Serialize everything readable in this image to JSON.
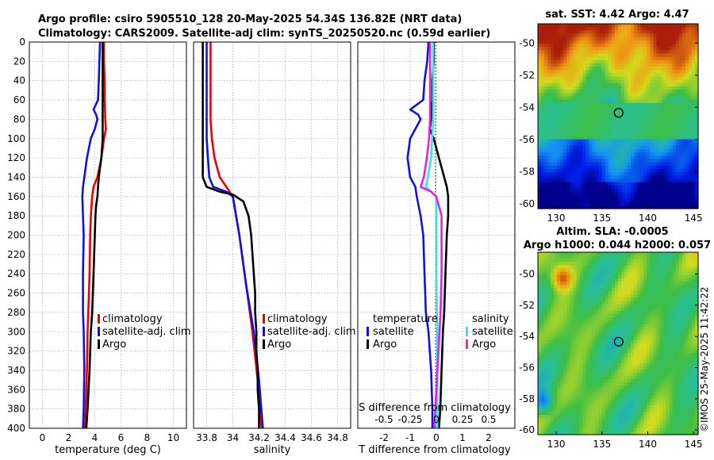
{
  "header": {
    "title_line1": "Argo profile: csiro 5905510_128 20-May-2025 54.34S 136.82E (NRT data)",
    "title_line2": "Climatology: CARS2009. Satellite-adj clim: synTS_20250520.nc (0.59d earlier)"
  },
  "colors": {
    "climatology": "#ee0000",
    "satellite": "#1111dd",
    "argo": "#000000",
    "salinity_sat": "#33e6e6",
    "salinity_argo": "#e61ee6",
    "grid": "#b3b3b3"
  },
  "chart_data": [
    {
      "id": "temperature",
      "type": "line",
      "xlabel": "temperature (deg C)",
      "ylabel": "",
      "xlim": [
        -1,
        11
      ],
      "ylim": [
        400,
        0
      ],
      "xticks": [
        0,
        2,
        4,
        6,
        8,
        10
      ],
      "yticks": [
        0,
        20,
        40,
        60,
        80,
        100,
        120,
        140,
        160,
        180,
        200,
        220,
        240,
        260,
        280,
        300,
        320,
        340,
        360,
        380,
        400
      ],
      "legend": [
        "climatology",
        "satellite-adj. clim",
        "Argo"
      ],
      "series": [
        {
          "name": "climatology",
          "color": "#ee0000",
          "points": [
            [
              4.7,
              0
            ],
            [
              4.7,
              20
            ],
            [
              4.75,
              40
            ],
            [
              4.75,
              60
            ],
            [
              4.8,
              80
            ],
            [
              4.85,
              90
            ],
            [
              4.7,
              100
            ],
            [
              4.5,
              120
            ],
            [
              4.2,
              140
            ],
            [
              3.9,
              150
            ],
            [
              3.8,
              160
            ],
            [
              3.7,
              180
            ],
            [
              3.65,
              200
            ],
            [
              3.6,
              240
            ],
            [
              3.5,
              280
            ],
            [
              3.45,
              300
            ],
            [
              3.4,
              340
            ],
            [
              3.3,
              380
            ],
            [
              3.25,
              400
            ]
          ]
        },
        {
          "name": "satellite-adj. clim",
          "color": "#1111dd",
          "points": [
            [
              4.4,
              0
            ],
            [
              4.35,
              20
            ],
            [
              4.3,
              40
            ],
            [
              4.25,
              60
            ],
            [
              3.9,
              70
            ],
            [
              4.1,
              75
            ],
            [
              4.2,
              80
            ],
            [
              4.0,
              90
            ],
            [
              3.7,
              100
            ],
            [
              3.4,
              120
            ],
            [
              3.2,
              140
            ],
            [
              3.1,
              150
            ],
            [
              3.05,
              160
            ],
            [
              3.1,
              180
            ],
            [
              3.15,
              200
            ],
            [
              3.1,
              240
            ],
            [
              3.1,
              280
            ],
            [
              3.15,
              300
            ],
            [
              3.2,
              340
            ],
            [
              3.15,
              380
            ],
            [
              3.1,
              400
            ]
          ]
        },
        {
          "name": "Argo",
          "color": "#000000",
          "points": [
            [
              4.6,
              0
            ],
            [
              4.6,
              20
            ],
            [
              4.6,
              40
            ],
            [
              4.6,
              60
            ],
            [
              4.6,
              80
            ],
            [
              4.6,
              100
            ],
            [
              4.55,
              110
            ],
            [
              4.5,
              120
            ],
            [
              4.4,
              130
            ],
            [
              4.3,
              140
            ],
            [
              4.25,
              150
            ],
            [
              4.2,
              160
            ],
            [
              4.1,
              170
            ],
            [
              4.05,
              180
            ],
            [
              4.0,
              200
            ],
            [
              3.9,
              240
            ],
            [
              3.8,
              280
            ],
            [
              3.7,
              300
            ],
            [
              3.6,
              340
            ],
            [
              3.45,
              380
            ],
            [
              3.35,
              400
            ]
          ]
        }
      ]
    },
    {
      "id": "salinity",
      "type": "line",
      "xlabel": "salinity",
      "ylabel": "",
      "xlim": [
        33.7,
        34.9
      ],
      "xticks": [
        33.8,
        34,
        34.2,
        34.4,
        34.6,
        34.8
      ],
      "xticklabels": [
        "33.8",
        "34",
        "34.2",
        "34.4",
        "34.6",
        "34.8"
      ],
      "legend": [
        "climatology",
        "satellite-adj. clim",
        "Argo"
      ],
      "series": [
        {
          "name": "climatology",
          "color": "#ee0000",
          "points": [
            [
              33.83,
              0
            ],
            [
              33.83,
              40
            ],
            [
              33.83,
              80
            ],
            [
              33.84,
              100
            ],
            [
              33.86,
              120
            ],
            [
              33.9,
              140
            ],
            [
              33.95,
              150
            ],
            [
              34.0,
              160
            ],
            [
              34.05,
              200
            ],
            [
              34.1,
              250
            ],
            [
              34.15,
              300
            ],
            [
              34.19,
              350
            ],
            [
              34.22,
              400
            ]
          ]
        },
        {
          "name": "satellite-adj. clim",
          "color": "#1111dd",
          "points": [
            [
              33.8,
              0
            ],
            [
              33.8,
              40
            ],
            [
              33.8,
              80
            ],
            [
              33.8,
              100
            ],
            [
              33.81,
              120
            ],
            [
              33.82,
              140
            ],
            [
              33.85,
              150
            ],
            [
              33.95,
              155
            ],
            [
              34.0,
              160
            ],
            [
              34.05,
              200
            ],
            [
              34.1,
              250
            ],
            [
              34.16,
              300
            ],
            [
              34.2,
              350
            ],
            [
              34.23,
              400
            ]
          ]
        },
        {
          "name": "Argo",
          "color": "#000000",
          "points": [
            [
              33.77,
              0
            ],
            [
              33.77,
              40
            ],
            [
              33.77,
              80
            ],
            [
              33.77,
              100
            ],
            [
              33.77,
              140
            ],
            [
              33.8,
              150
            ],
            [
              33.9,
              155
            ],
            [
              34.0,
              158
            ],
            [
              34.08,
              165
            ],
            [
              34.12,
              180
            ],
            [
              34.14,
              200
            ],
            [
              34.16,
              240
            ],
            [
              34.17,
              260
            ],
            [
              34.17,
              280
            ],
            [
              34.18,
              300
            ],
            [
              34.18,
              320
            ],
            [
              34.19,
              340
            ],
            [
              34.19,
              360
            ],
            [
              34.2,
              380
            ],
            [
              34.2,
              400
            ]
          ]
        }
      ]
    },
    {
      "id": "difference",
      "type": "line",
      "xlabel": "T difference from climatology",
      "x2label": "S difference from climatology",
      "xlim": [
        -3,
        3
      ],
      "xticks": [
        -2,
        -1,
        0,
        1,
        2
      ],
      "x2lim": [
        -0.75,
        0.75
      ],
      "x2ticks": [
        -0.5,
        -0.25,
        0,
        0.25,
        0.5
      ],
      "x2ticklabels": [
        "-0.5",
        "-0.25",
        "0",
        "0.25",
        "0.5"
      ],
      "legend_temperature_title": "temperature",
      "legend_salinity_title": "salinity",
      "legend": [
        "satellite",
        "Argo",
        "satellite",
        "Argo"
      ],
      "series": [
        {
          "name": "temperature satellite",
          "color": "#1111dd",
          "points": [
            [
              -0.3,
              0
            ],
            [
              -0.35,
              20
            ],
            [
              -0.45,
              40
            ],
            [
              -0.5,
              60
            ],
            [
              -1.0,
              70
            ],
            [
              -0.7,
              75
            ],
            [
              -0.6,
              80
            ],
            [
              -0.8,
              90
            ],
            [
              -1.0,
              100
            ],
            [
              -1.1,
              120
            ],
            [
              -1.0,
              140
            ],
            [
              -0.8,
              150
            ],
            [
              -0.75,
              160
            ],
            [
              -0.6,
              180
            ],
            [
              -0.5,
              200
            ],
            [
              -0.45,
              240
            ],
            [
              -0.4,
              280
            ],
            [
              -0.3,
              300
            ],
            [
              -0.2,
              340
            ],
            [
              -0.15,
              380
            ],
            [
              -0.15,
              400
            ]
          ]
        },
        {
          "name": "temperature Argo",
          "color": "#000000",
          "points": [
            [
              -0.1,
              0
            ],
            [
              -0.1,
              20
            ],
            [
              -0.15,
              40
            ],
            [
              -0.15,
              60
            ],
            [
              -0.2,
              80
            ],
            [
              -0.25,
              90
            ],
            [
              -0.1,
              100
            ],
            [
              0.0,
              110
            ],
            [
              0.1,
              120
            ],
            [
              0.2,
              130
            ],
            [
              0.3,
              140
            ],
            [
              0.4,
              150
            ],
            [
              0.45,
              160
            ],
            [
              0.45,
              180
            ],
            [
              0.4,
              200
            ],
            [
              0.35,
              240
            ],
            [
              0.3,
              280
            ],
            [
              0.25,
              300
            ],
            [
              0.2,
              340
            ],
            [
              0.15,
              380
            ],
            [
              0.1,
              400
            ]
          ]
        },
        {
          "name": "salinity satellite",
          "color": "#33e6e6",
          "points": [
            [
              -0.03,
              0
            ],
            [
              -0.03,
              20
            ],
            [
              -0.03,
              40
            ],
            [
              -0.03,
              60
            ],
            [
              -0.03,
              80
            ],
            [
              -0.04,
              100
            ],
            [
              -0.05,
              120
            ],
            [
              -0.08,
              140
            ],
            [
              -0.1,
              150
            ],
            [
              -0.05,
              155
            ],
            [
              0.0,
              160
            ],
            [
              0.0,
              200
            ],
            [
              0.0,
              250
            ],
            [
              0.01,
              300
            ],
            [
              0.01,
              350
            ],
            [
              0.01,
              400
            ]
          ]
        },
        {
          "name": "salinity Argo",
          "color": "#e61ee6",
          "points": [
            [
              -0.06,
              0
            ],
            [
              -0.06,
              20
            ],
            [
              -0.06,
              40
            ],
            [
              -0.06,
              60
            ],
            [
              -0.06,
              80
            ],
            [
              -0.07,
              100
            ],
            [
              -0.09,
              120
            ],
            [
              -0.12,
              140
            ],
            [
              -0.15,
              150
            ],
            [
              -0.05,
              155
            ],
            [
              0.0,
              160
            ],
            [
              0.05,
              180
            ],
            [
              0.05,
              200
            ],
            [
              0.05,
              240
            ],
            [
              0.04,
              280
            ],
            [
              0.03,
              300
            ],
            [
              0.01,
              340
            ],
            [
              -0.01,
              380
            ],
            [
              -0.02,
              400
            ]
          ]
        }
      ]
    },
    {
      "id": "sst_map",
      "type": "heatmap",
      "title": "sat. SST: 4.42  Argo: 4.47",
      "xticks": [
        130,
        135,
        140,
        145
      ],
      "yticks": [
        -50,
        -52,
        -54,
        -56,
        -58,
        -60
      ],
      "xlim": [
        128,
        145.5
      ],
      "ylim": [
        -60.3,
        -48.8
      ],
      "marker": {
        "lon": 136.82,
        "lat": -54.34
      }
    },
    {
      "id": "sla_map",
      "type": "heatmap",
      "title_line1": "Altim. SLA: -0.0005",
      "title_line2": "Argo h1000: 0.044  h2000: 0.057",
      "xticks": [
        130,
        135,
        140,
        145
      ],
      "yticks": [
        -50,
        -52,
        -54,
        -56,
        -58,
        -60
      ],
      "xlim": [
        128,
        145.5
      ],
      "ylim": [
        -60.3,
        -48.6
      ],
      "marker": {
        "lon": 136.82,
        "lat": -54.34
      }
    }
  ],
  "footer": {
    "credit": "©IMOS 25-May-2025 11:42:22"
  }
}
